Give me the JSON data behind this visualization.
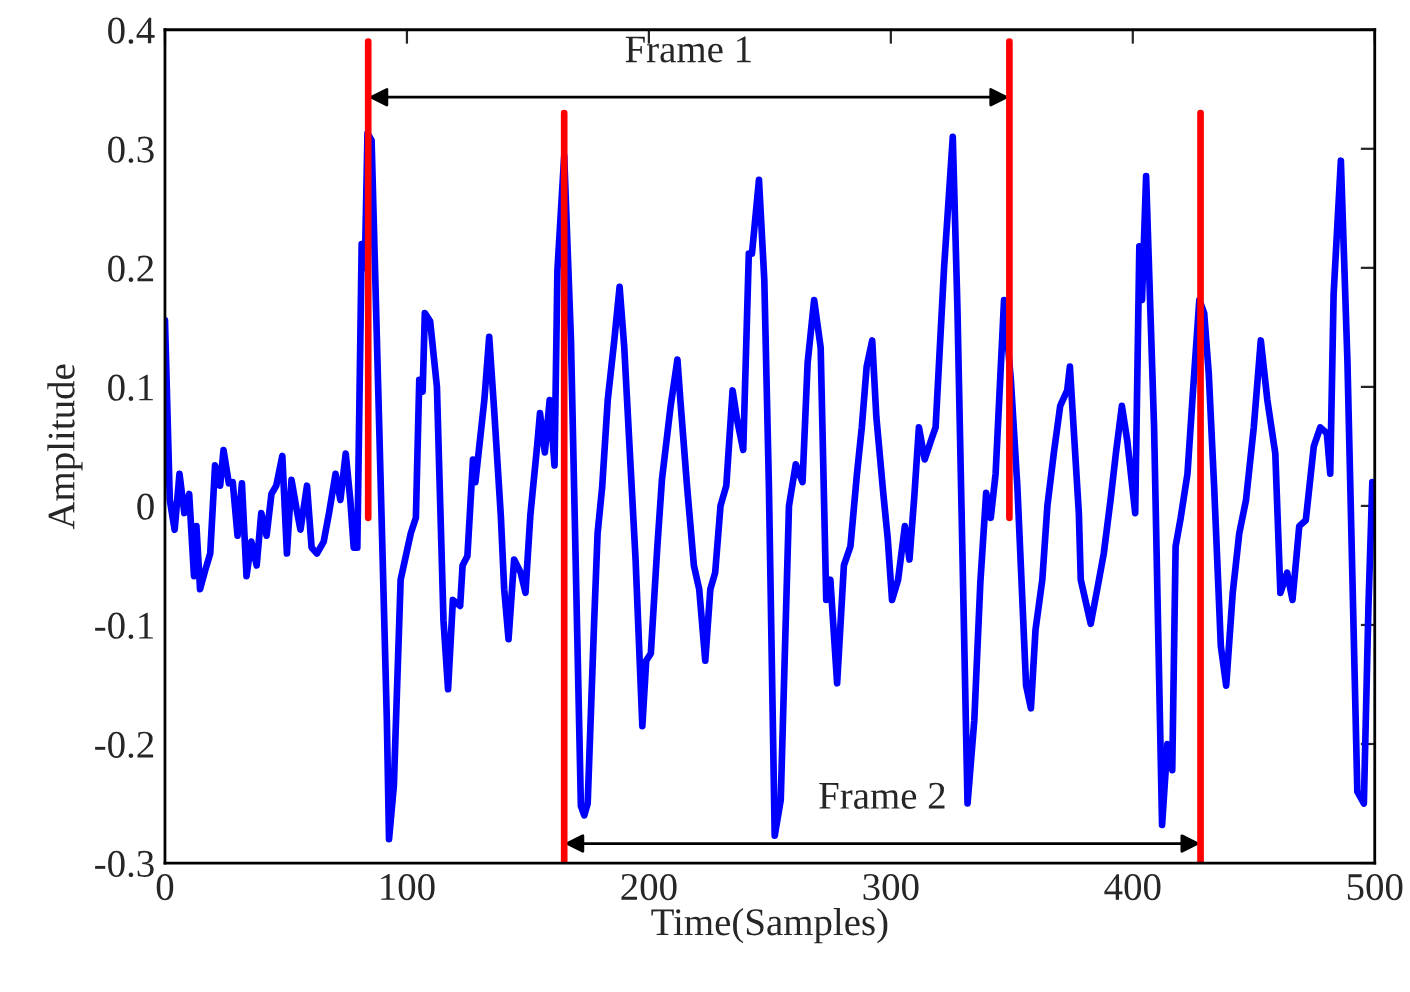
{
  "chart_data": {
    "type": "line",
    "xlabel": "Time(Samples)",
    "ylabel": "Amplitude",
    "xlim": [
      0,
      500
    ],
    "ylim": [
      -0.3,
      0.4
    ],
    "xticks": [
      0,
      100,
      200,
      300,
      400,
      500
    ],
    "yticks": [
      -0.3,
      -0.2,
      -0.1,
      0,
      0.1,
      0.2,
      0.3,
      0.4
    ],
    "grid": false,
    "legend": false,
    "marker": "none",
    "line_style": "solid",
    "series": [
      {
        "color": "#0000ff",
        "x": [
          0,
          2,
          4,
          6,
          8,
          10,
          12,
          13,
          14.5,
          16.5,
          18.7,
          20.7,
          22.8,
          24.2,
          26.4,
          28,
          30,
          31.8,
          33.7,
          35.7,
          37.9,
          39.8,
          42,
          44,
          46,
          48.5,
          50.4,
          52.3,
          54.5,
          56,
          58.7,
          60.6,
          62.8,
          65.6,
          67.8,
          70.5,
          72.5,
          74.7,
          76.6,
          78,
          79.5,
          81.3,
          82.6,
          83.7,
          85.4,
          88.4,
          91.7,
          92.6,
          94.6,
          97.4,
          101.6,
          103.7,
          105.1,
          106.5,
          107.4,
          109.6,
          112.4,
          115.1,
          117,
          119,
          122,
          123,
          125,
          127.3,
          128.3,
          132,
          134,
          136,
          138.8,
          140.2,
          142,
          144.3,
          147,
          149,
          151,
          153.8,
          155,
          157,
          159,
          161,
          162.2,
          165,
          167.8,
          171.9,
          173.3,
          174.7,
          177.4,
          178.8,
          180.7,
          183,
          185.7,
          187.9,
          189.8,
          192.6,
          194.5,
          197.3,
          198.9,
          200.8,
          203.5,
          205.4,
          209,
          211.8,
          213,
          215.8,
          218.6,
          220.8,
          223.3,
          225.4,
          227.4,
          229.6,
          232,
          234.6,
          236.5,
          239,
          241.3,
          242.6,
          245.5,
          247.7,
          249.6,
          252,
          254.5,
          257.9,
          260.7,
          263.5,
          265.6,
          268.3,
          271,
          273.3,
          275,
          277.8,
          280.6,
          283.3,
          286,
          288,
          290,
          292.3,
          294,
          296.9,
          298.7,
          300.5,
          303,
          305.8,
          307.7,
          309.7,
          311.6,
          314,
          316.6,
          318.5,
          322,
          325.6,
          327.5,
          331.7,
          334.5,
          337,
          339.4,
          341.3,
          343.3,
          344.9,
          346.8,
          349.6,
          352.3,
          355.9,
          357.9,
          359.8,
          362.6,
          364.7,
          367.4,
          370,
          372.9,
          374,
          375.5,
          377.7,
          378.5,
          382.6,
          385.3,
          388,
          390.8,
          393,
          395.5,
          397.7,
          401,
          402.7,
          403.8,
          405.5,
          408.8,
          412.1,
          414.3,
          416.3,
          417.7,
          419.8,
          422.6,
          424.8,
          427.5,
          429.5,
          431.4,
          433.6,
          436.4,
          438.6,
          441.3,
          444,
          446.8,
          450,
          452.9,
          455.6,
          458.9,
          461,
          463.8,
          466,
          468.8,
          471.5,
          474.8,
          477.5,
          480.2,
          481.6,
          483,
          486,
          488.7,
          492.8,
          495.5,
          497.4,
          499
        ],
        "values": [
          0.156,
          0.005,
          -0.02,
          0.027,
          -0.006,
          0.01,
          -0.059,
          -0.017,
          -0.07,
          -0.055,
          -0.04,
          0.034,
          0.017,
          0.047,
          0.019,
          0.02,
          -0.025,
          0.019,
          -0.059,
          -0.03,
          -0.05,
          -0.006,
          -0.025,
          0.01,
          0.017,
          0.042,
          -0.04,
          0.022,
          -0.004,
          -0.02,
          0.017,
          -0.035,
          -0.04,
          -0.03,
          -0.006,
          0.027,
          0.005,
          0.044,
          0.005,
          -0.035,
          -0.035,
          0.22,
          0.2,
          0.313,
          0.307,
          0.078,
          -0.18,
          -0.28,
          -0.235,
          -0.062,
          -0.023,
          -0.01,
          0.106,
          0.096,
          0.162,
          0.155,
          0.1,
          -0.096,
          -0.154,
          -0.079,
          -0.084,
          -0.05,
          -0.042,
          0.039,
          0.02,
          0.089,
          0.142,
          0.082,
          -0.008,
          -0.07,
          -0.112,
          -0.045,
          -0.056,
          -0.073,
          -0.008,
          0.05,
          0.078,
          0.045,
          0.089,
          0.034,
          0.198,
          0.294,
          0.139,
          -0.252,
          -0.26,
          -0.25,
          -0.096,
          -0.023,
          0.016,
          0.089,
          0.139,
          0.184,
          0.134,
          0.027,
          -0.045,
          -0.185,
          -0.13,
          -0.124,
          -0.034,
          0.022,
          0.084,
          0.123,
          0.089,
          0.016,
          -0.05,
          -0.07,
          -0.13,
          -0.07,
          -0.056,
          0.0,
          0.017,
          0.097,
          0.072,
          0.047,
          0.212,
          0.212,
          0.274,
          0.19,
          0.017,
          -0.277,
          -0.247,
          0.0,
          0.035,
          0.02,
          0.12,
          0.173,
          0.133,
          -0.079,
          -0.062,
          -0.149,
          -0.05,
          -0.034,
          0.027,
          0.066,
          0.117,
          0.139,
          0.075,
          0.01,
          -0.027,
          -0.079,
          -0.062,
          -0.017,
          -0.045,
          0.008,
          0.066,
          0.039,
          0.055,
          0.066,
          0.2,
          0.31,
          0.168,
          -0.25,
          -0.18,
          -0.064,
          0.011,
          -0.01,
          0.027,
          0.094,
          0.173,
          0.106,
          0.016,
          -0.151,
          -0.17,
          -0.104,
          -0.062,
          0.0,
          0.045,
          0.084,
          0.097,
          0.117,
          0.067,
          -0.006,
          -0.062,
          -0.099,
          -0.07,
          -0.04,
          0.005,
          0.044,
          0.084,
          0.055,
          -0.006,
          0.218,
          0.173,
          0.277,
          0.066,
          -0.268,
          -0.2,
          -0.222,
          -0.034,
          -0.01,
          0.027,
          0.094,
          0.173,
          0.162,
          0.111,
          0.017,
          -0.118,
          -0.151,
          -0.073,
          -0.023,
          0.005,
          0.066,
          0.139,
          0.089,
          0.044,
          -0.073,
          -0.056,
          -0.079,
          -0.017,
          -0.012,
          0.05,
          0.066,
          0.061,
          0.027,
          0.178,
          0.29,
          0.122,
          -0.24,
          -0.25,
          -0.084,
          0.02
        ]
      },
      {
        "color": "#ff0000",
        "x": [
          84,
          84
        ],
        "values": [
          -0.01,
          0.39
        ]
      },
      {
        "color": "#ff0000",
        "x": [
          165,
          165
        ],
        "values": [
          -0.3,
          0.33
        ]
      },
      {
        "color": "#ff0000",
        "x": [
          349,
          349
        ],
        "values": [
          -0.01,
          0.39
        ]
      },
      {
        "color": "#ff0000",
        "x": [
          428,
          428
        ],
        "values": [
          -0.3,
          0.33
        ]
      }
    ],
    "annotations": [
      "Frame 1",
      "Frame 2"
    ]
  }
}
